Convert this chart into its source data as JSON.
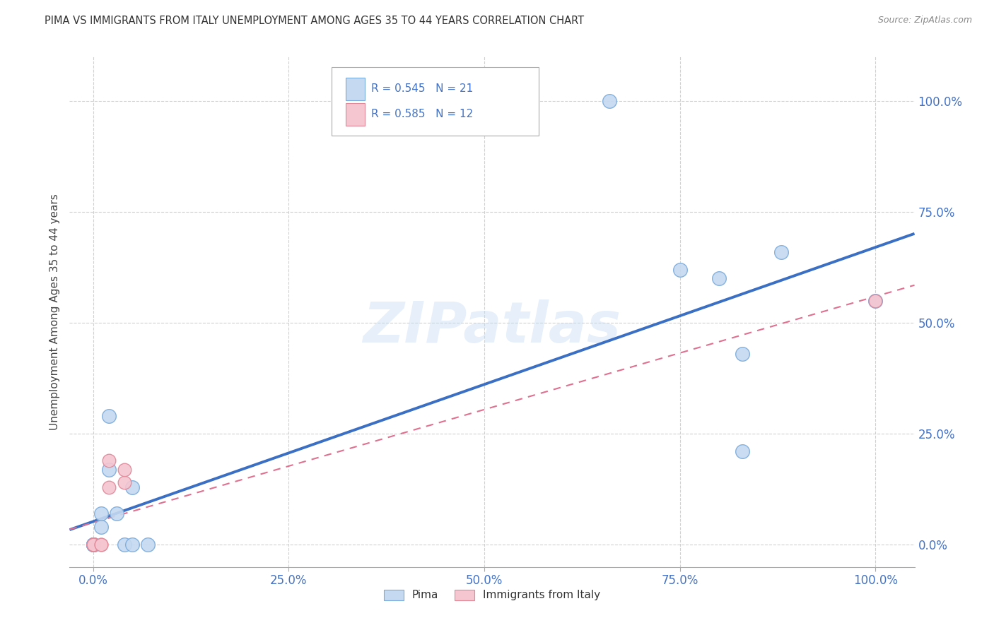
{
  "title": "PIMA VS IMMIGRANTS FROM ITALY UNEMPLOYMENT AMONG AGES 35 TO 44 YEARS CORRELATION CHART",
  "source": "Source: ZipAtlas.com",
  "ylabel": "Unemployment Among Ages 35 to 44 years",
  "xlim": [
    -0.03,
    1.05
  ],
  "ylim": [
    -0.05,
    1.1
  ],
  "xticks": [
    0.0,
    0.25,
    0.5,
    0.75,
    1.0
  ],
  "yticks": [
    0.0,
    0.25,
    0.5,
    0.75,
    1.0
  ],
  "xtick_labels": [
    "0.0%",
    "25.0%",
    "50.0%",
    "75.0%",
    "100.0%"
  ],
  "ytick_labels": [
    "0.0%",
    "25.0%",
    "50.0%",
    "75.0%",
    "100.0%"
  ],
  "background_color": "#ffffff",
  "grid_color": "#d0d0d0",
  "pima_color": "#c5d9f0",
  "pima_edge_color": "#7aabdb",
  "italy_color": "#f5c5d0",
  "italy_edge_color": "#e08898",
  "pima_line_color": "#3a6fc4",
  "italy_line_color": "#e07090",
  "tick_color": "#4472c4",
  "watermark_text": "ZIPatlas",
  "pima_scatter_x": [
    0.02,
    0.0,
    0.0,
    0.0,
    0.0,
    0.0,
    0.01,
    0.01,
    0.02,
    0.03,
    0.04,
    0.05,
    0.05,
    0.07,
    0.66,
    0.75,
    0.8,
    0.83,
    0.83,
    0.88,
    1.0
  ],
  "pima_scatter_y": [
    0.29,
    0.0,
    0.0,
    0.0,
    0.0,
    0.0,
    0.04,
    0.07,
    0.17,
    0.07,
    0.0,
    0.13,
    0.0,
    0.0,
    1.0,
    0.62,
    0.6,
    0.43,
    0.21,
    0.66,
    0.55
  ],
  "italy_scatter_x": [
    0.0,
    0.0,
    0.0,
    0.0,
    0.0,
    0.01,
    0.01,
    0.02,
    0.02,
    0.04,
    0.04,
    1.0
  ],
  "italy_scatter_y": [
    0.0,
    0.0,
    0.0,
    0.0,
    0.0,
    0.0,
    0.0,
    0.13,
    0.19,
    0.14,
    0.17,
    0.55
  ],
  "pima_marker_size": 200,
  "italy_marker_size": 180,
  "legend_pima_text": "R = 0.545   N = 21",
  "legend_italy_text": "R = 0.585   N = 12",
  "bottom_legend_pima": "Pima",
  "bottom_legend_italy": "Immigrants from Italy"
}
